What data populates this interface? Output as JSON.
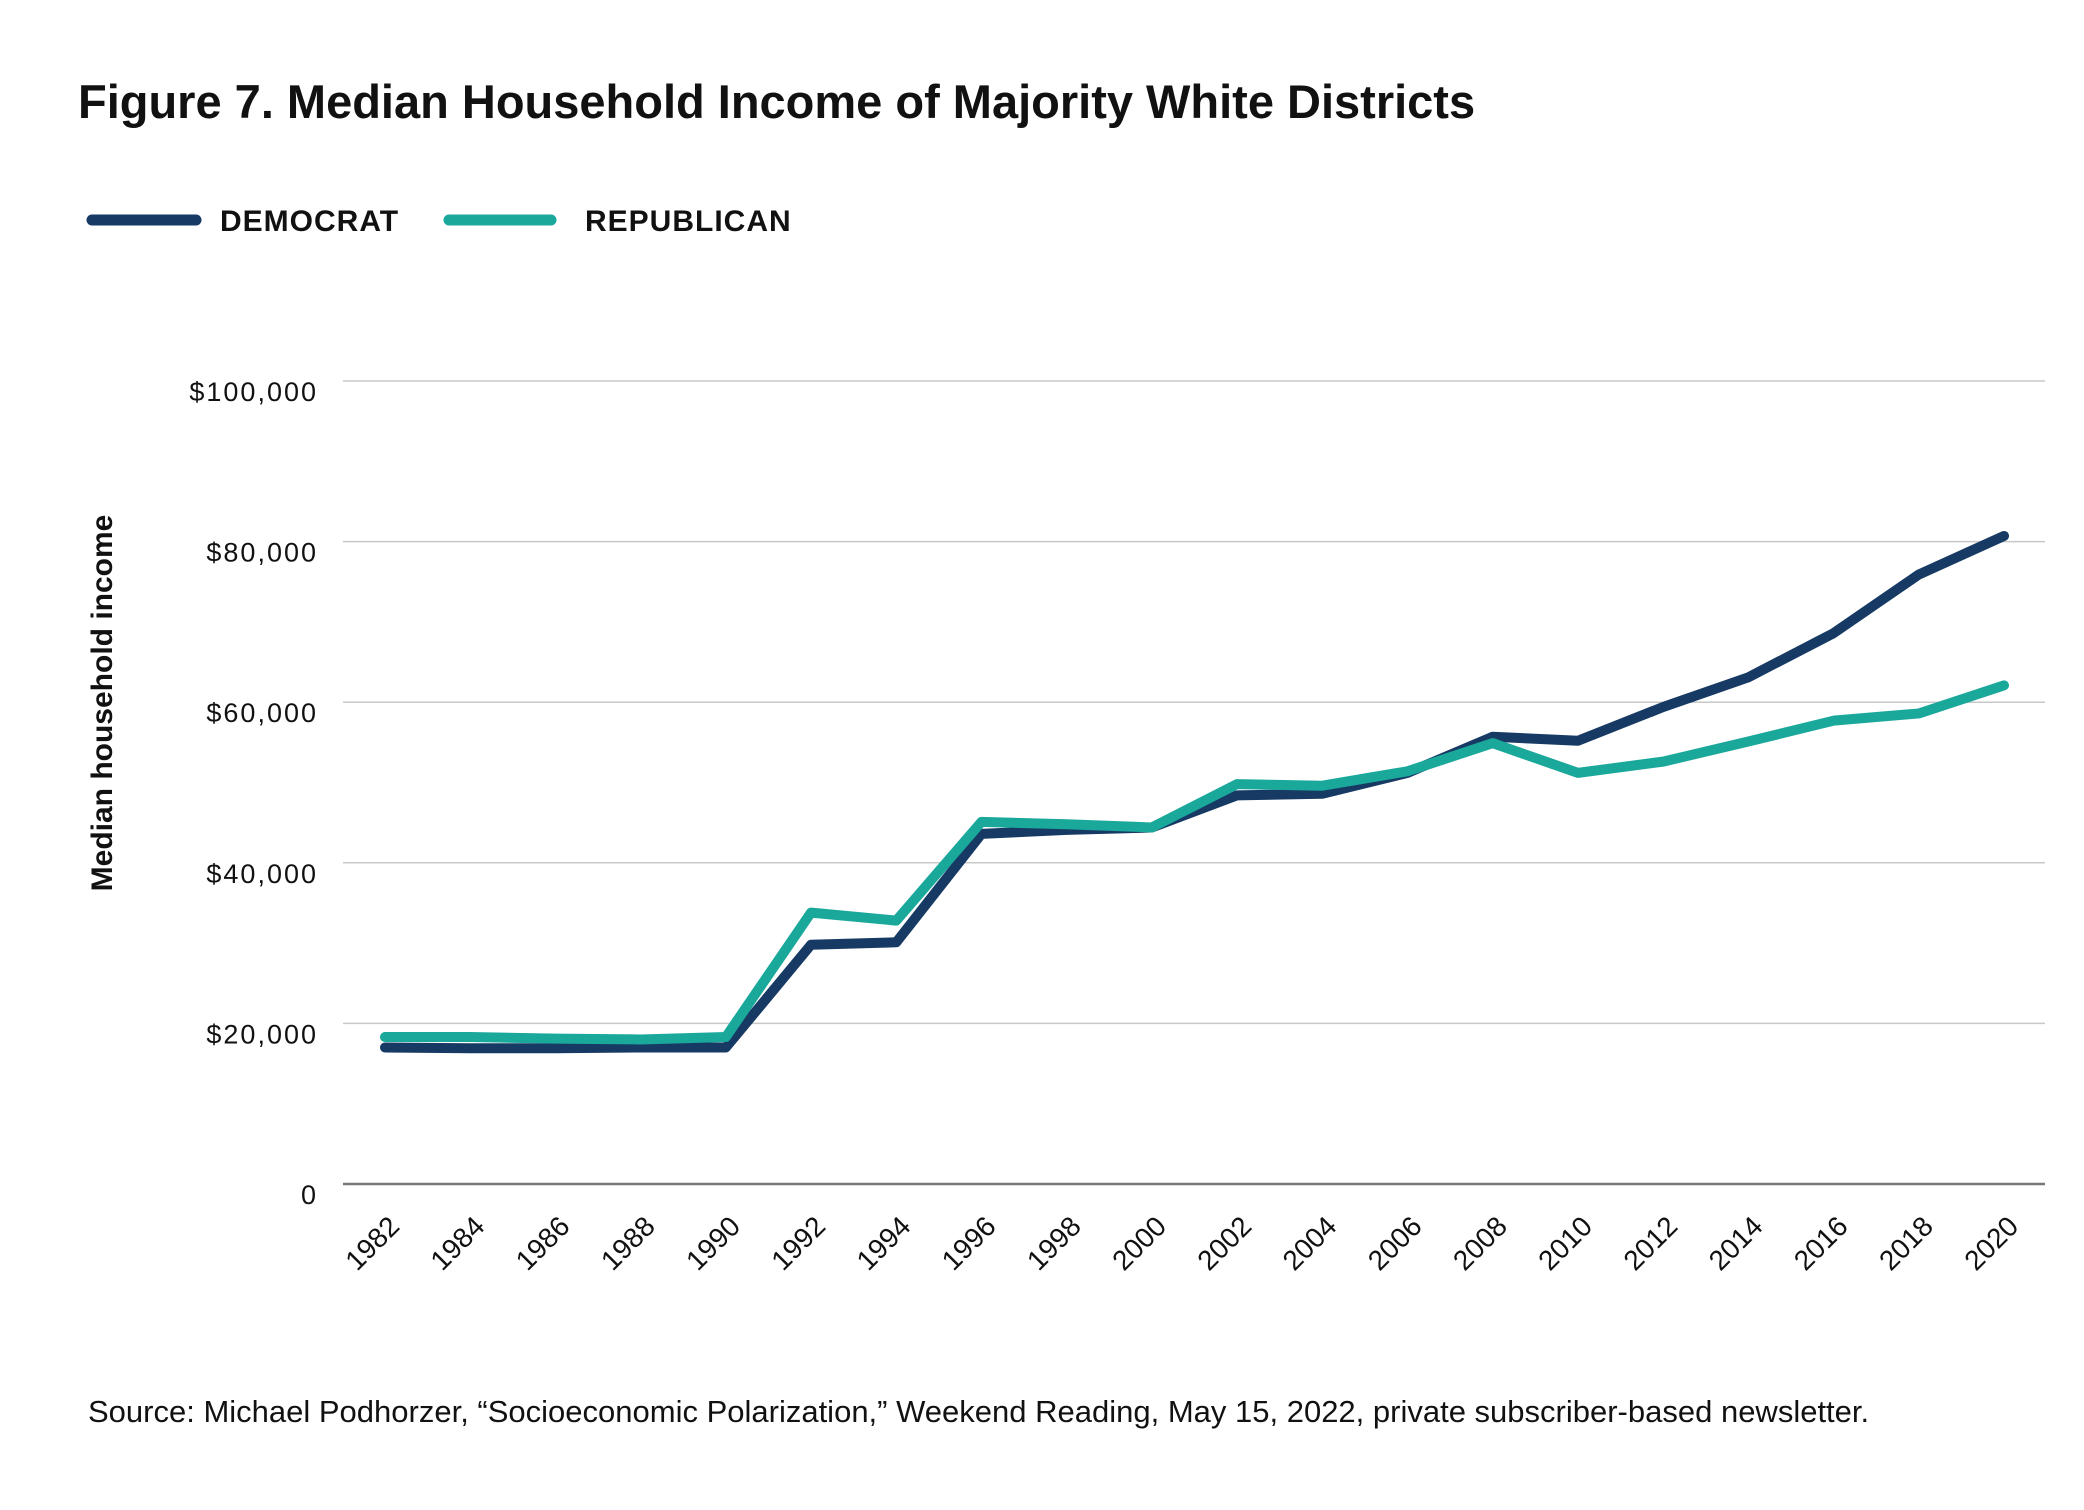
{
  "chart_data": {
    "type": "line",
    "title": "Figure 7. Median Household Income of Majority White Districts",
    "y_label": "Median household income",
    "source": "Source: Michael Podhorzer, “Socioeconomic Polarization,” Weekend Reading, May 15, 2022, private subscriber-based newsletter.",
    "categories": [
      "1982",
      "1984",
      "1986",
      "1988",
      "1990",
      "1992",
      "1994",
      "1996",
      "1998",
      "2000",
      "2002",
      "2004",
      "2006",
      "2008",
      "2010",
      "2012",
      "2014",
      "2016",
      "2018",
      "2020"
    ],
    "series": [
      {
        "name": "DEMOCRAT",
        "color": "#163a64",
        "values": [
          17000,
          16900,
          16900,
          17000,
          17000,
          29800,
          30100,
          43600,
          44100,
          44400,
          48400,
          48600,
          51200,
          55700,
          55200,
          59400,
          63100,
          68600,
          75900,
          80700
        ]
      },
      {
        "name": "REPUBLICAN",
        "color": "#1aa89b",
        "values": [
          18300,
          18300,
          18100,
          18000,
          18300,
          33800,
          32800,
          45100,
          44800,
          44400,
          49800,
          49600,
          51400,
          54900,
          51200,
          52600,
          55100,
          57700,
          58600,
          62100
        ]
      }
    ],
    "ylim": [
      0,
      100000
    ],
    "yticks": [
      0,
      {
        "value": 20000,
        "label": "$20,000"
      },
      {
        "value": 40000,
        "label": "$40,000"
      },
      {
        "value": 60000,
        "label": "$60,000"
      },
      {
        "value": 80000,
        "label": "$80,000"
      },
      {
        "value": 100000,
        "label": "$100,000"
      }
    ],
    "grid": true,
    "legend": "top-left"
  }
}
